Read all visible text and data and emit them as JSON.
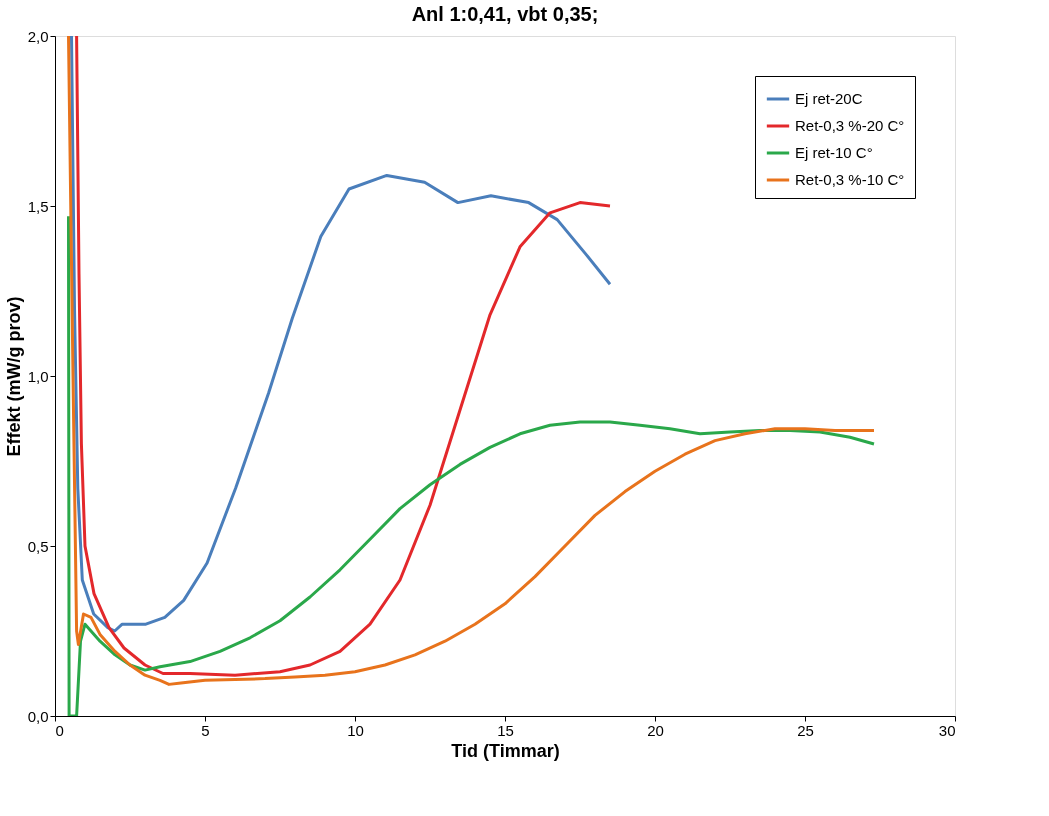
{
  "chart_data": {
    "type": "line",
    "title": "Anl 1:0,41, vbt 0,35;",
    "xlabel": "Tid (Timmar)",
    "ylabel": "Effekt (mW/g prov)",
    "xlim": [
      0,
      30
    ],
    "xticks": [
      0,
      5,
      10,
      15,
      20,
      25,
      30
    ],
    "ylim": [
      0,
      2
    ],
    "yticks": [
      {
        "value": 0,
        "label": "0,0"
      },
      {
        "value": 0.5,
        "label": "0,5"
      },
      {
        "value": 1,
        "label": "1,0"
      },
      {
        "value": 1.5,
        "label": "1,5"
      },
      {
        "value": 2,
        "label": "2,0"
      }
    ],
    "grid": false,
    "legend": "top right",
    "marker": "none",
    "line_style": "solid",
    "series": [
      {
        "name": "Ej ret-20C",
        "color": "#4a7ebb",
        "x": [
          0.55,
          0.65,
          0.76,
          0.91,
          1.29,
          1.76,
          1.99,
          2.24,
          3.03,
          3.66,
          4.29,
          5.07,
          6.02,
          7.12,
          7.91,
          8.86,
          9.8,
          11.06,
          12.32,
          13.43,
          14.53,
          15.79,
          16.74,
          17.68,
          18.5
        ],
        "values": [
          2.0,
          1.2,
          0.67,
          0.4,
          0.3,
          0.26,
          0.25,
          0.27,
          0.27,
          0.29,
          0.34,
          0.45,
          0.67,
          0.95,
          1.17,
          1.41,
          1.55,
          1.59,
          1.57,
          1.51,
          1.53,
          1.51,
          1.46,
          1.36,
          1.27
        ]
      },
      {
        "name": "Ret-0,3 %-20 C°",
        "color": "#e3282b",
        "x": [
          0.72,
          0.8,
          0.88,
          1.0,
          1.3,
          1.8,
          2.3,
          3.0,
          3.6,
          4.5,
          6.0,
          7.5,
          8.5,
          9.5,
          10.5,
          11.5,
          12.5,
          13.5,
          14.5,
          15.5,
          16.5,
          17.5,
          18.5
        ],
        "values": [
          2.0,
          1.3,
          0.8,
          0.5,
          0.36,
          0.26,
          0.2,
          0.15,
          0.125,
          0.125,
          0.12,
          0.13,
          0.15,
          0.19,
          0.27,
          0.4,
          0.62,
          0.9,
          1.18,
          1.38,
          1.48,
          1.51,
          1.5
        ]
      },
      {
        "name": "Ej ret-10 C°",
        "color": "#2aa84a",
        "x": [
          0.45,
          0.47,
          0.72,
          0.85,
          1.0,
          1.5,
          2.0,
          2.5,
          3.0,
          3.5,
          4.5,
          5.5,
          6.5,
          7.5,
          8.5,
          9.5,
          10.5,
          11.5,
          12.5,
          13.5,
          14.5,
          15.5,
          16.5,
          17.5,
          18.5,
          19.5,
          20.5,
          21.5,
          22.5,
          23.5,
          24.5,
          25.5,
          26.5,
          27.3
        ],
        "values": [
          1.47,
          0,
          0,
          0.22,
          0.27,
          0.22,
          0.18,
          0.15,
          0.135,
          0.145,
          0.16,
          0.19,
          0.23,
          0.28,
          0.35,
          0.43,
          0.52,
          0.61,
          0.68,
          0.74,
          0.79,
          0.83,
          0.855,
          0.865,
          0.865,
          0.855,
          0.845,
          0.83,
          0.835,
          0.84,
          0.84,
          0.835,
          0.82,
          0.8
        ]
      },
      {
        "name": "Ret-0,3 %-10 C°",
        "color": "#e8731c",
        "x": [
          0.45,
          0.6,
          0.72,
          0.78,
          0.95,
          1.2,
          1.5,
          2.0,
          2.5,
          3.0,
          3.5,
          3.8,
          4.2,
          5,
          6,
          7,
          8,
          9,
          10,
          11,
          12,
          13,
          14,
          15,
          16,
          17,
          18,
          19,
          20,
          21,
          22,
          23,
          24,
          25,
          26,
          27.3
        ],
        "values": [
          2.0,
          1.0,
          0.25,
          0.21,
          0.3,
          0.29,
          0.24,
          0.19,
          0.15,
          0.12,
          0.105,
          0.093,
          0.097,
          0.105,
          0.107,
          0.11,
          0.115,
          0.12,
          0.13,
          0.15,
          0.18,
          0.22,
          0.27,
          0.33,
          0.41,
          0.5,
          0.59,
          0.66,
          0.72,
          0.77,
          0.81,
          0.83,
          0.845,
          0.845,
          0.84,
          0.84
        ]
      }
    ]
  }
}
